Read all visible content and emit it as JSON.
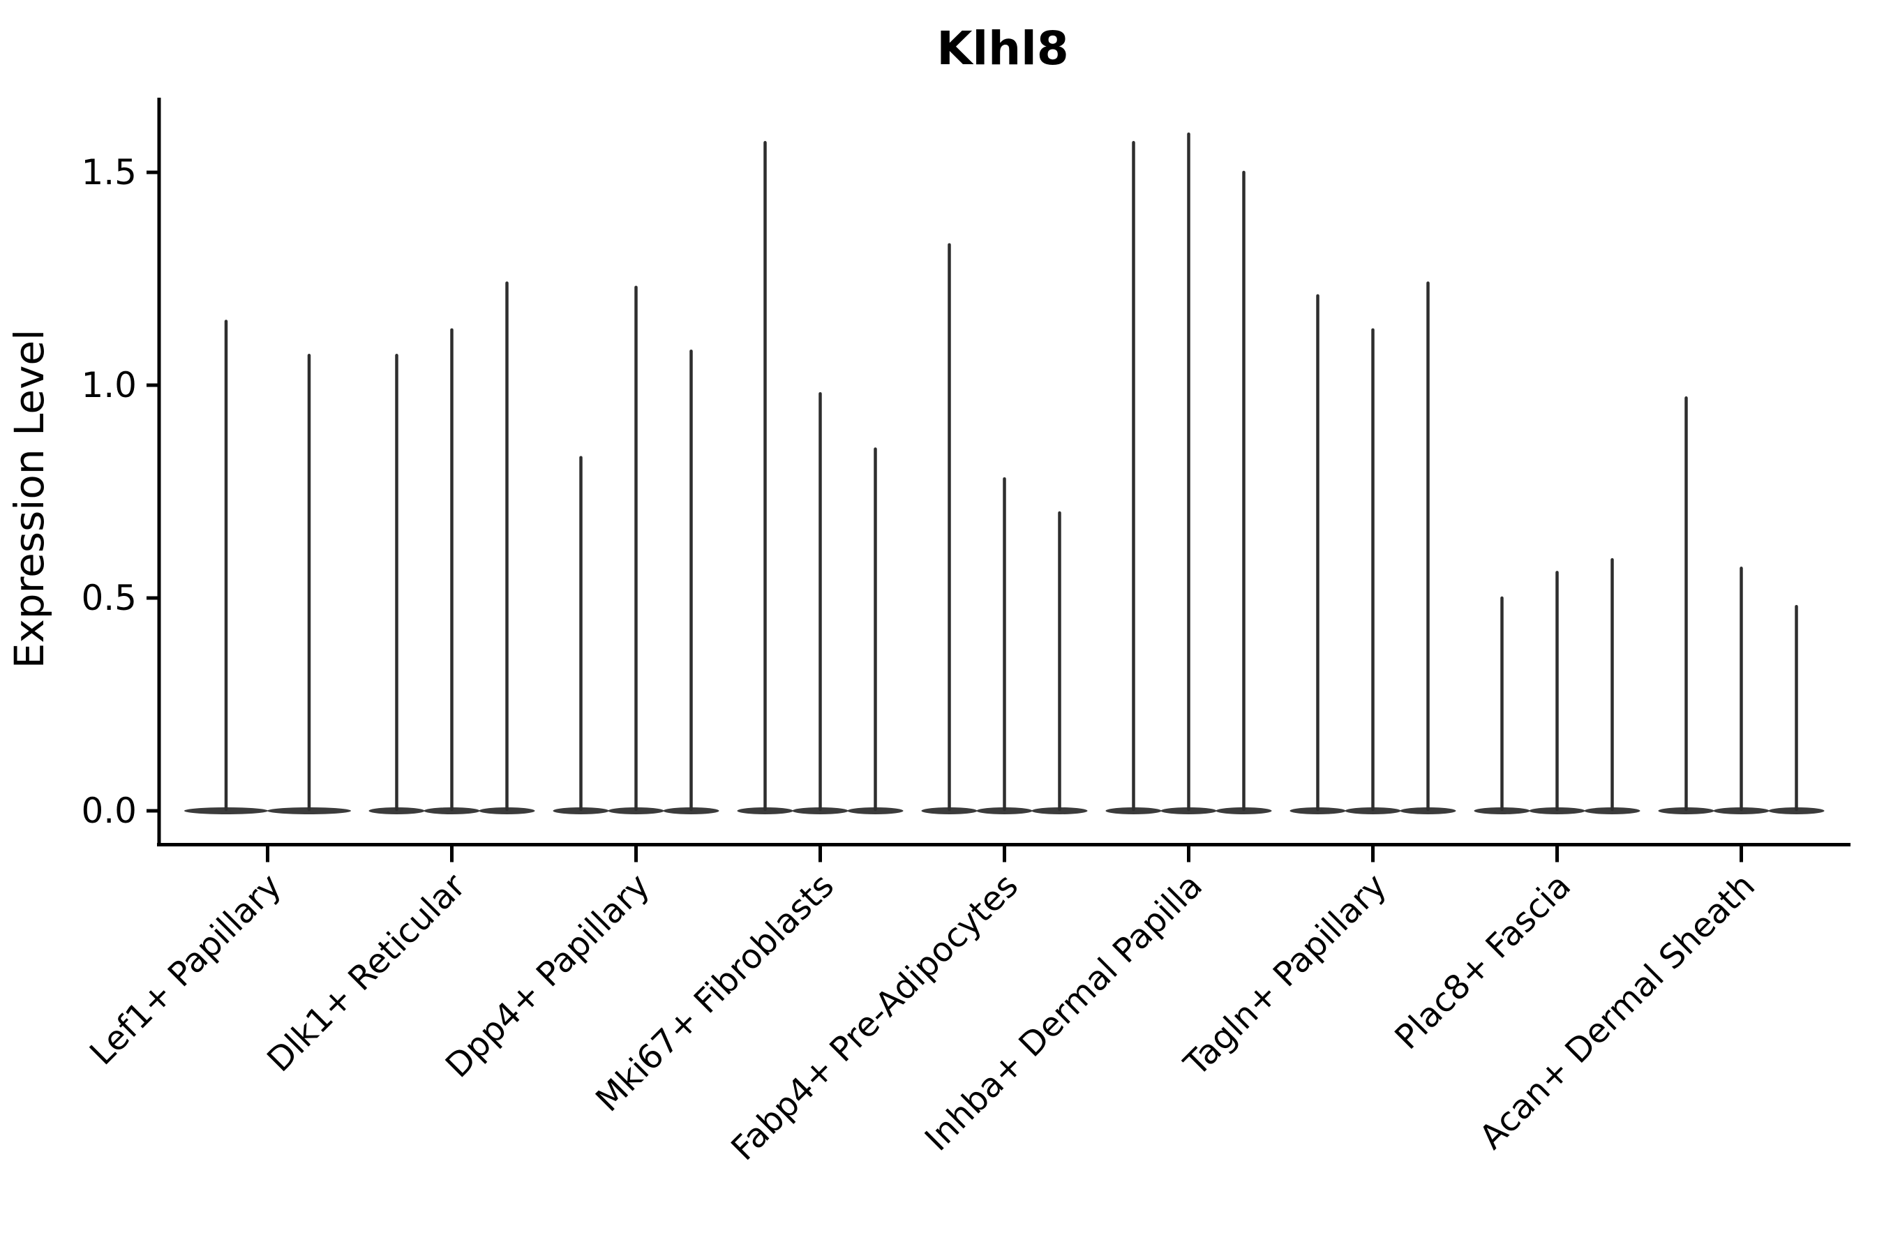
{
  "figure": {
    "title": "Klhl8",
    "y_axis_label": "Expression Level"
  },
  "chart_data": {
    "type": "violin",
    "title": "Klhl8",
    "xlabel": "",
    "ylabel": "Expression Level",
    "ylim": [
      0,
      1.675
    ],
    "y_ticks": [
      0.0,
      0.5,
      1.0,
      1.5
    ],
    "y_tick_labels": [
      "0.0",
      "0.5",
      "1.0",
      "1.5"
    ],
    "grid": false,
    "legend_position": "none",
    "violin_style": "narrow-spike-with-flat-base-at-zero",
    "categories": [
      "Lef1+ Papillary",
      "Dlk1+ Reticular",
      "Dpp4+ Papillary",
      "Mki67+ Fibroblasts",
      "Fabp4+ Pre-Adipocytes",
      "Inhba+ Dermal Papilla",
      "Tagln+ Papillary",
      "Plac8+ Fascia",
      "Acan+ Dermal Sheath"
    ],
    "series": [
      {
        "category": "Lef1+ Papillary",
        "violin_maxima": [
          1.15,
          1.07
        ]
      },
      {
        "category": "Dlk1+ Reticular",
        "violin_maxima": [
          1.07,
          1.13,
          1.24
        ]
      },
      {
        "category": "Dpp4+ Papillary",
        "violin_maxima": [
          0.83,
          1.23,
          1.08
        ]
      },
      {
        "category": "Mki67+ Fibroblasts",
        "violin_maxima": [
          1.57,
          0.98,
          0.85
        ]
      },
      {
        "category": "Fabp4+ Pre-Adipocytes",
        "violin_maxima": [
          1.33,
          0.78,
          0.7
        ]
      },
      {
        "category": "Inhba+ Dermal Papilla",
        "violin_maxima": [
          1.57,
          1.59,
          1.5
        ]
      },
      {
        "category": "Tagln+ Papillary",
        "violin_maxima": [
          1.21,
          1.13,
          1.24
        ]
      },
      {
        "category": "Plac8+ Fascia",
        "violin_maxima": [
          0.5,
          0.56,
          0.59
        ]
      },
      {
        "category": "Acan+ Dermal Sheath",
        "violin_maxima": [
          0.97,
          0.57,
          0.48
        ]
      }
    ],
    "colors": {
      "violin": "#2e2e2e",
      "violin_base": "#3b3b3b",
      "axis": "#000000",
      "text": "#000000",
      "background": "#ffffff"
    }
  }
}
